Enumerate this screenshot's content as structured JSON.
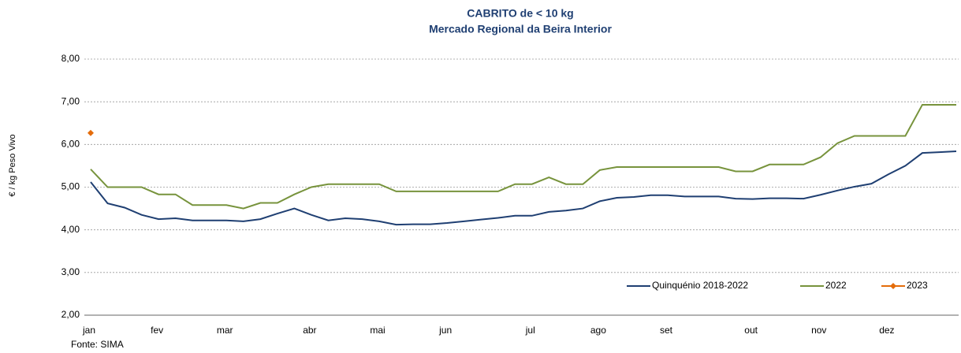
{
  "chart_data": {
    "type": "line",
    "title": "CABRITO de < 10 kg",
    "subtitle": "Mercado Regional da Beira Interior",
    "y_label": "€ / kg Peso Vivo",
    "source": "Fonte: SIMA",
    "categories": [
      "jan",
      null,
      null,
      null,
      "fev",
      null,
      null,
      null,
      "mar",
      null,
      null,
      null,
      null,
      "abr",
      null,
      null,
      null,
      "mai",
      null,
      null,
      null,
      "jun",
      null,
      null,
      null,
      null,
      "jul",
      null,
      null,
      null,
      "ago",
      null,
      null,
      null,
      "set",
      null,
      null,
      null,
      null,
      "out",
      null,
      null,
      null,
      "nov",
      null,
      null,
      null,
      "dez",
      null,
      null,
      null,
      null
    ],
    "ylim": [
      2,
      8
    ],
    "yticks": [
      {
        "value": 2,
        "label": "2,00"
      },
      {
        "value": 3,
        "label": "3,00"
      },
      {
        "value": 4,
        "label": "4,00"
      },
      {
        "value": 5,
        "label": "5,00"
      },
      {
        "value": 6,
        "label": "6,00"
      },
      {
        "value": 7,
        "label": "7,00"
      },
      {
        "value": 8,
        "label": "8,00"
      }
    ],
    "grid": true,
    "legend": "bottom-right",
    "series": [
      {
        "name": "Quinquénio 2018-2022",
        "color": "#1f3f72",
        "values": [
          5.12,
          4.62,
          4.52,
          4.35,
          4.25,
          4.27,
          4.22,
          4.22,
          4.22,
          4.2,
          4.25,
          4.38,
          4.5,
          4.35,
          4.22,
          4.27,
          4.25,
          4.2,
          4.12,
          4.13,
          4.13,
          4.16,
          4.2,
          4.24,
          4.28,
          4.33,
          4.33,
          4.42,
          4.45,
          4.5,
          4.67,
          4.75,
          4.77,
          4.81,
          4.81,
          4.78,
          4.78,
          4.78,
          4.73,
          4.72,
          4.74,
          4.74,
          4.73,
          4.82,
          4.92,
          5.01,
          5.08,
          5.3,
          5.5,
          5.8,
          5.82,
          5.84
        ]
      },
      {
        "name": "2022",
        "color": "#77933c",
        "values": [
          5.42,
          5.0,
          5.0,
          5.0,
          4.83,
          4.83,
          4.58,
          4.58,
          4.58,
          4.5,
          4.63,
          4.63,
          4.83,
          5.0,
          5.07,
          5.07,
          5.07,
          5.07,
          4.9,
          4.9,
          4.9,
          4.9,
          4.9,
          4.9,
          4.9,
          5.07,
          5.07,
          5.23,
          5.07,
          5.07,
          5.4,
          5.47,
          5.47,
          5.47,
          5.47,
          5.47,
          5.47,
          5.47,
          5.37,
          5.37,
          5.53,
          5.53,
          5.53,
          5.7,
          6.03,
          6.2,
          6.2,
          6.2,
          6.2,
          6.93,
          6.93,
          6.93
        ]
      },
      {
        "name": "2023",
        "color": "#e46c0a",
        "marker": "diamond",
        "values": [
          6.27,
          null,
          null,
          null,
          null,
          null,
          null,
          null,
          null,
          null,
          null,
          null,
          null,
          null,
          null,
          null,
          null,
          null,
          null,
          null,
          null,
          null,
          null,
          null,
          null,
          null,
          null,
          null,
          null,
          null,
          null,
          null,
          null,
          null,
          null,
          null,
          null,
          null,
          null,
          null,
          null,
          null,
          null,
          null,
          null,
          null,
          null,
          null,
          null,
          null,
          null,
          null
        ]
      }
    ]
  }
}
